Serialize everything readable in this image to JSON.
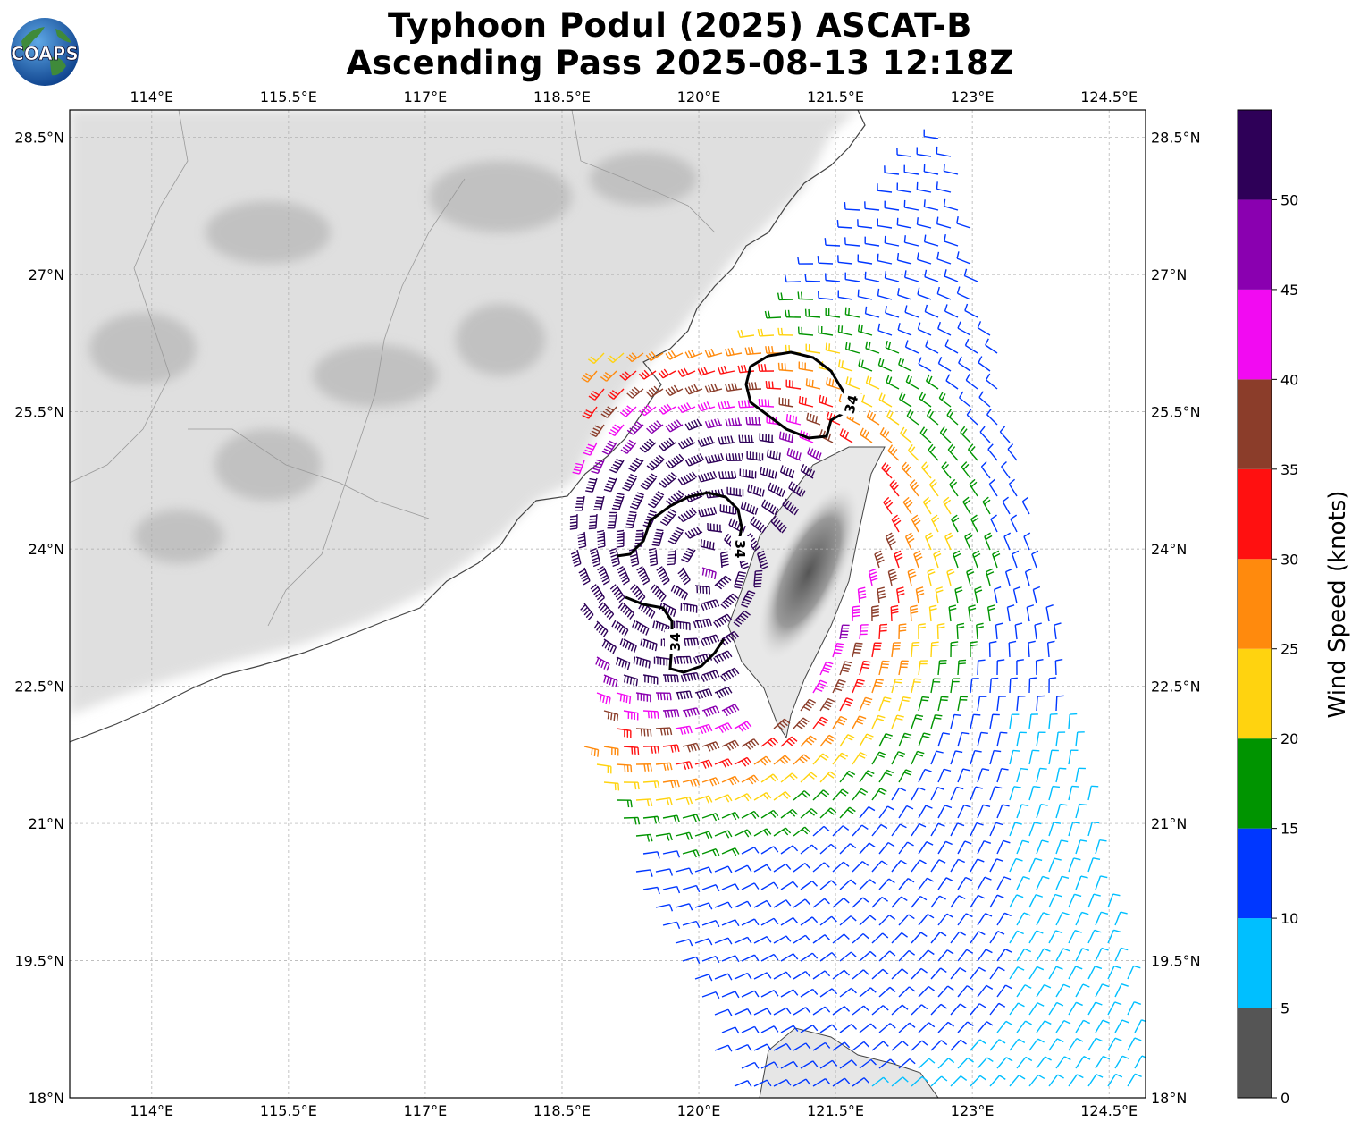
{
  "title": {
    "line1": "Typhoon Podul (2025) ASCAT-B",
    "line2": "Ascending Pass 2025-08-13 12:18Z"
  },
  "logo": {
    "text": "COAPS",
    "icon": "globe-logo-icon"
  },
  "map": {
    "lon_range": [
      113.1,
      124.9
    ],
    "lat_range": [
      18.0,
      28.8
    ],
    "lon_ticks": [
      114,
      115.5,
      117,
      118.5,
      120,
      121.5,
      123,
      124.5
    ],
    "lon_tick_labels": [
      "114°E",
      "115.5°E",
      "117°E",
      "118.5°E",
      "120°E",
      "121.5°E",
      "123°E",
      "124.5°E"
    ],
    "lat_ticks": [
      18,
      19.5,
      21,
      22.5,
      24,
      25.5,
      27,
      28.5
    ],
    "lat_tick_labels": [
      "18°N",
      "19.5°N",
      "21°N",
      "22.5°N",
      "24°N",
      "25.5°N",
      "27°N",
      "28.5°N"
    ],
    "gridlines": true,
    "contour_label": "34"
  },
  "colorbar": {
    "label": "Wind Speed (knots)",
    "ticks": [
      0,
      5,
      10,
      15,
      20,
      25,
      30,
      35,
      40,
      45,
      50
    ],
    "colors": [
      "#555555",
      "#00bfff",
      "#0037ff",
      "#009400",
      "#ffd30f",
      "#ff8a0d",
      "#ff1010",
      "#8b3d2a",
      "#f20af2",
      "#8a00b0",
      "#2e0058"
    ]
  }
}
